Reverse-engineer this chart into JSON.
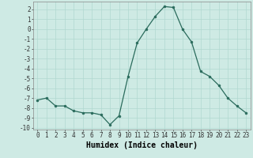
{
  "x": [
    0,
    1,
    2,
    3,
    4,
    5,
    6,
    7,
    8,
    9,
    10,
    11,
    12,
    13,
    14,
    15,
    16,
    17,
    18,
    19,
    20,
    21,
    22,
    23
  ],
  "y": [
    -7.2,
    -7.0,
    -7.8,
    -7.8,
    -8.3,
    -8.5,
    -8.5,
    -8.7,
    -9.7,
    -8.8,
    -4.8,
    -1.4,
    0.0,
    1.3,
    2.3,
    2.2,
    0.0,
    -1.3,
    -4.3,
    -4.8,
    -5.7,
    -7.0,
    -7.8,
    -8.5
  ],
  "xlabel": "Humidex (Indice chaleur)",
  "xlim": [
    -0.5,
    23.5
  ],
  "ylim": [
    -10.2,
    2.8
  ],
  "yticks": [
    -10,
    -9,
    -8,
    -7,
    -6,
    -5,
    -4,
    -3,
    -2,
    -1,
    0,
    1,
    2
  ],
  "xticks": [
    0,
    1,
    2,
    3,
    4,
    5,
    6,
    7,
    8,
    9,
    10,
    11,
    12,
    13,
    14,
    15,
    16,
    17,
    18,
    19,
    20,
    21,
    22,
    23
  ],
  "line_color": "#2a6b5c",
  "marker_color": "#2a6b5c",
  "bg_color": "#ceeae4",
  "grid_color": "#b0d8d0",
  "xlabel_fontsize": 7,
  "tick_fontsize": 5.5
}
